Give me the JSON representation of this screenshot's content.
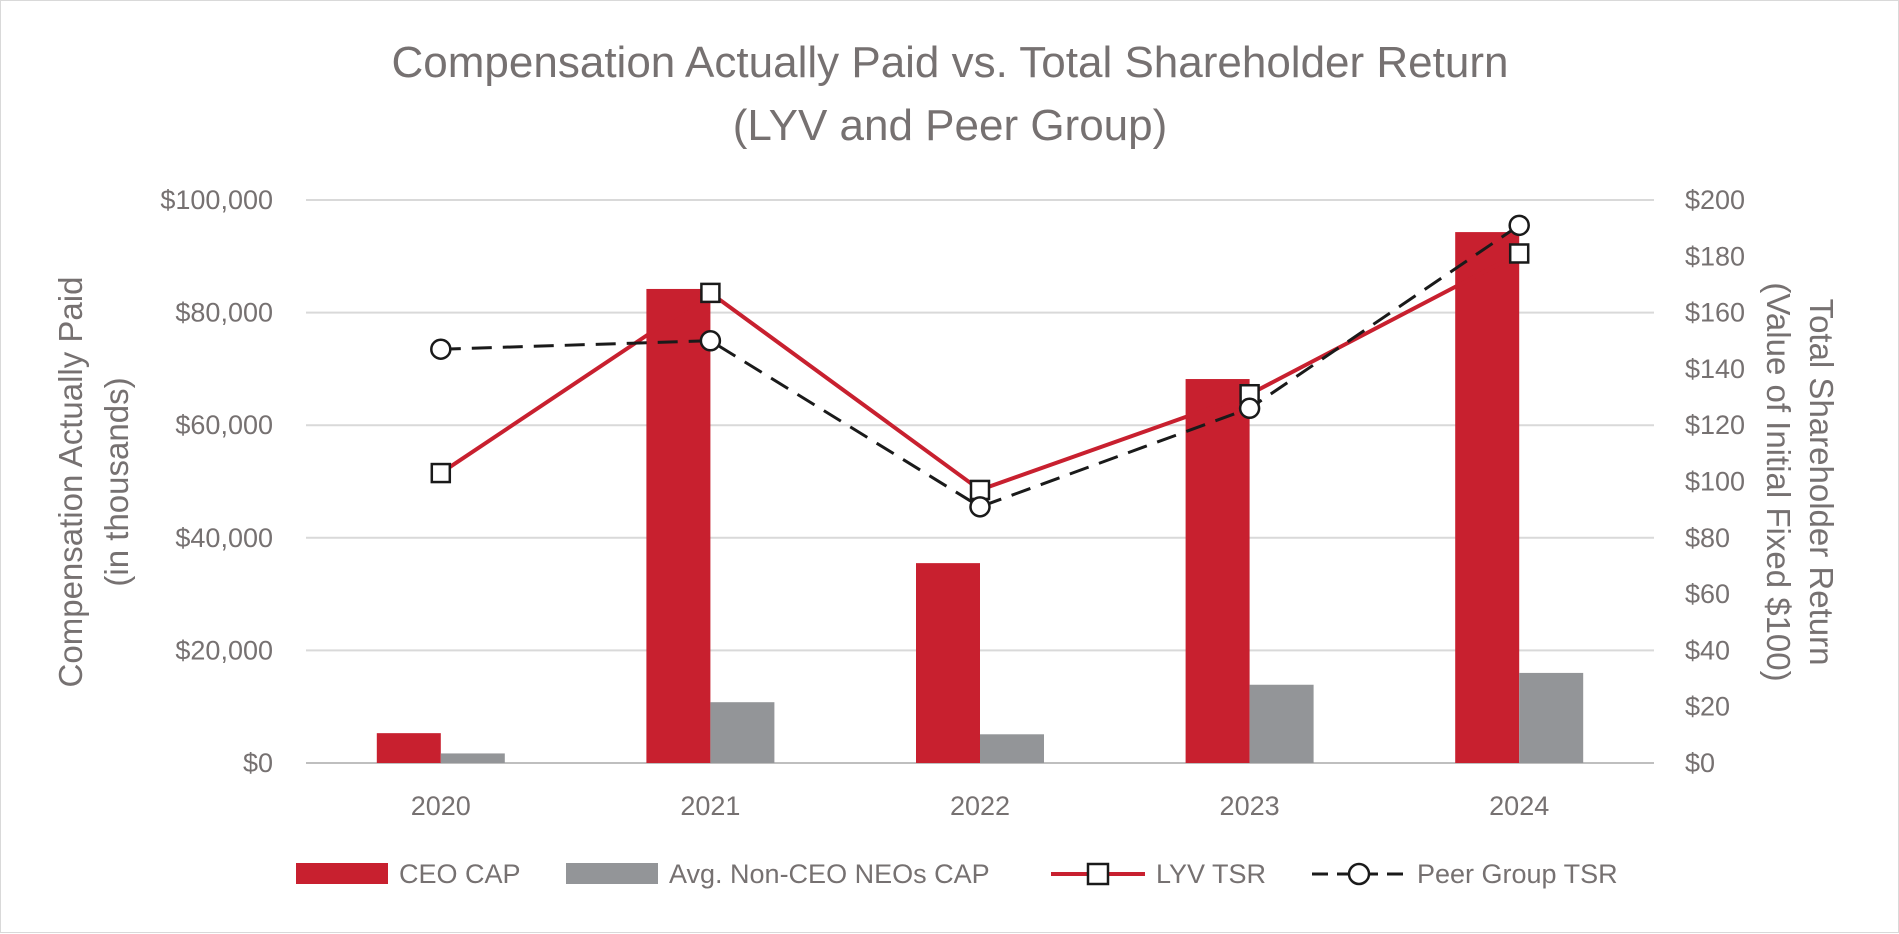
{
  "chart_data": {
    "type": "bar",
    "title": "Compensation Actually Paid vs. Total Shareholder Return",
    "subtitle": "(LYV and Peer Group)",
    "categories": [
      "2020",
      "2021",
      "2022",
      "2023",
      "2024"
    ],
    "y_left": {
      "label_line1": "Compensation Actually Paid",
      "label_line2": "(in thousands)",
      "range": [
        0,
        100000
      ],
      "ticks": [
        "$0",
        "$20,000",
        "$40,000",
        "$60,000",
        "$80,000",
        "$100,000"
      ],
      "tick_values": [
        0,
        20000,
        40000,
        60000,
        80000,
        100000
      ]
    },
    "y_right": {
      "label_line1": "Total Shareholder Return",
      "label_line2": "(Value of Initial Fixed $100)",
      "range": [
        0,
        200
      ],
      "ticks": [
        "$0",
        "$20",
        "$40",
        "$60",
        "$80",
        "$100",
        "$120",
        "$140",
        "$160",
        "$180",
        "$200"
      ],
      "tick_values": [
        0,
        20,
        40,
        60,
        80,
        100,
        120,
        140,
        160,
        180,
        200
      ]
    },
    "series": [
      {
        "name": "CEO CAP",
        "kind": "bar",
        "axis": "left",
        "color": "#c8202f",
        "values": [
          5300,
          84200,
          35500,
          68200,
          94300
        ]
      },
      {
        "name": "Avg. Non-CEO NEOs CAP",
        "kind": "bar",
        "axis": "left",
        "color": "#939598",
        "values": [
          1700,
          10800,
          5100,
          13900,
          16000
        ]
      },
      {
        "name": "LYV TSR",
        "kind": "line",
        "axis": "right",
        "color": "#c8202f",
        "marker": "square",
        "values": [
          103,
          167,
          97,
          131,
          181
        ]
      },
      {
        "name": "Peer Group TSR",
        "kind": "line",
        "axis": "right",
        "color": "#1a1a1a",
        "marker": "circle",
        "dashed": true,
        "values": [
          147,
          150,
          91,
          126,
          191
        ]
      }
    ],
    "grid": true,
    "legend_position": "bottom"
  }
}
